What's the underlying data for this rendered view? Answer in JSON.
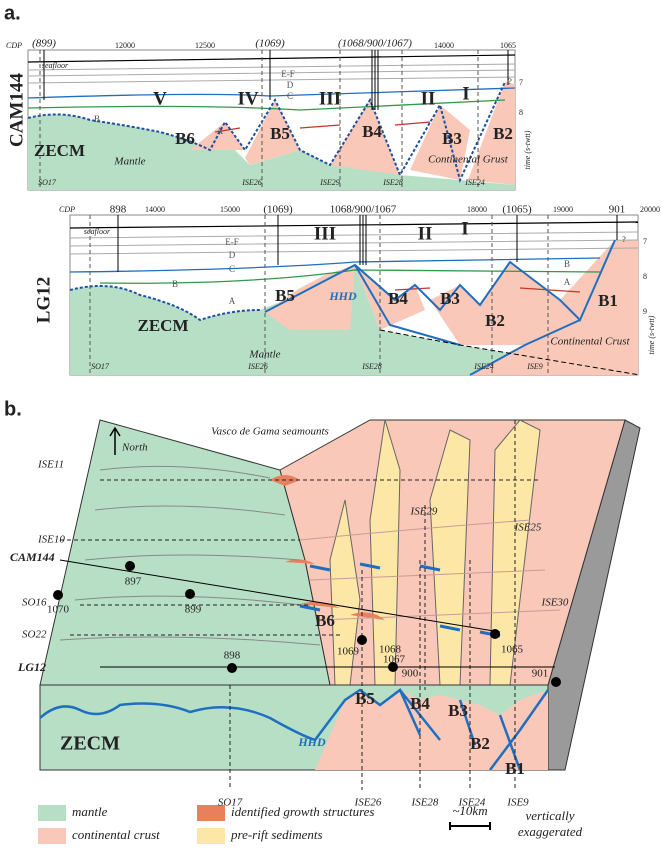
{
  "panel_a": {
    "label": "a.",
    "cam144": {
      "name": "CAM144",
      "cdp_label": "CDP",
      "cdp_ticks": [
        "(899)",
        "12000",
        "12500",
        "(1069)",
        "(1068/900/1067)",
        "14000",
        "1065"
      ],
      "time_label": "time (s-twtt)",
      "time_ticks": [
        "7",
        "8"
      ],
      "question": "?",
      "structures": [
        "V",
        "IV",
        "III",
        "II",
        "I"
      ],
      "blocks": [
        "B6",
        "B5",
        "B4",
        "B3",
        "B2"
      ],
      "units": [
        "seafloor",
        "E-F",
        "D",
        "C",
        "B",
        "A"
      ],
      "domains": [
        "ZECM",
        "Mantle",
        "Continental Grust"
      ],
      "profiles": [
        "SO17",
        "ISE26",
        "ISE29",
        "ISE28",
        "ISE24"
      ]
    },
    "lg12": {
      "name": "LG12",
      "cdp_label": "CDP",
      "cdp_ticks": [
        "898",
        "14000",
        "15000",
        "(1069)",
        "1068/900/1067",
        "18000",
        "(1065)",
        "19000",
        "901",
        "20000"
      ],
      "time_label": "time (s-twtt)",
      "time_ticks": [
        "7",
        "8",
        "9"
      ],
      "question": "?",
      "structures": [
        "III",
        "II",
        "I"
      ],
      "blocks": [
        "B5",
        "B4",
        "B3",
        "B2",
        "B1"
      ],
      "units": [
        "seafloor",
        "E-F",
        "D",
        "C",
        "B",
        "A",
        "B",
        "A"
      ],
      "detachment": "HHD",
      "domains": [
        "ZECM",
        "Mantle",
        "Continental Crust"
      ],
      "profiles": [
        "SO17",
        "ISE26",
        "ISE28",
        "ISE24",
        "ISE9"
      ]
    }
  },
  "panel_b": {
    "label": "b.",
    "title": "Vasco de Gama seamounts",
    "north": "North",
    "profiles": [
      "ISE11",
      "ISE10",
      "CAM144",
      "SO16",
      "SO22",
      "LG12"
    ],
    "sites": [
      "897",
      "1070",
      "899",
      "898",
      "1069",
      "1068",
      "1067",
      "900",
      "1065",
      "901"
    ],
    "surface_lines": [
      "ISE29",
      "ISE25",
      "ISE30"
    ],
    "blocks": [
      "B6",
      "B5",
      "B4",
      "B3",
      "B2",
      "B1"
    ],
    "domains": [
      "ZECM",
      "HHD"
    ],
    "front_lines": [
      "SO17",
      "ISE26",
      "ISE28",
      "ISE24",
      "ISE9"
    ]
  },
  "legend": {
    "items": [
      "mantle",
      "continental crust",
      "identified growth structures",
      "pre-rift sediments"
    ],
    "scale": "~10km",
    "note": [
      "vertically",
      "exaggerated"
    ]
  }
}
